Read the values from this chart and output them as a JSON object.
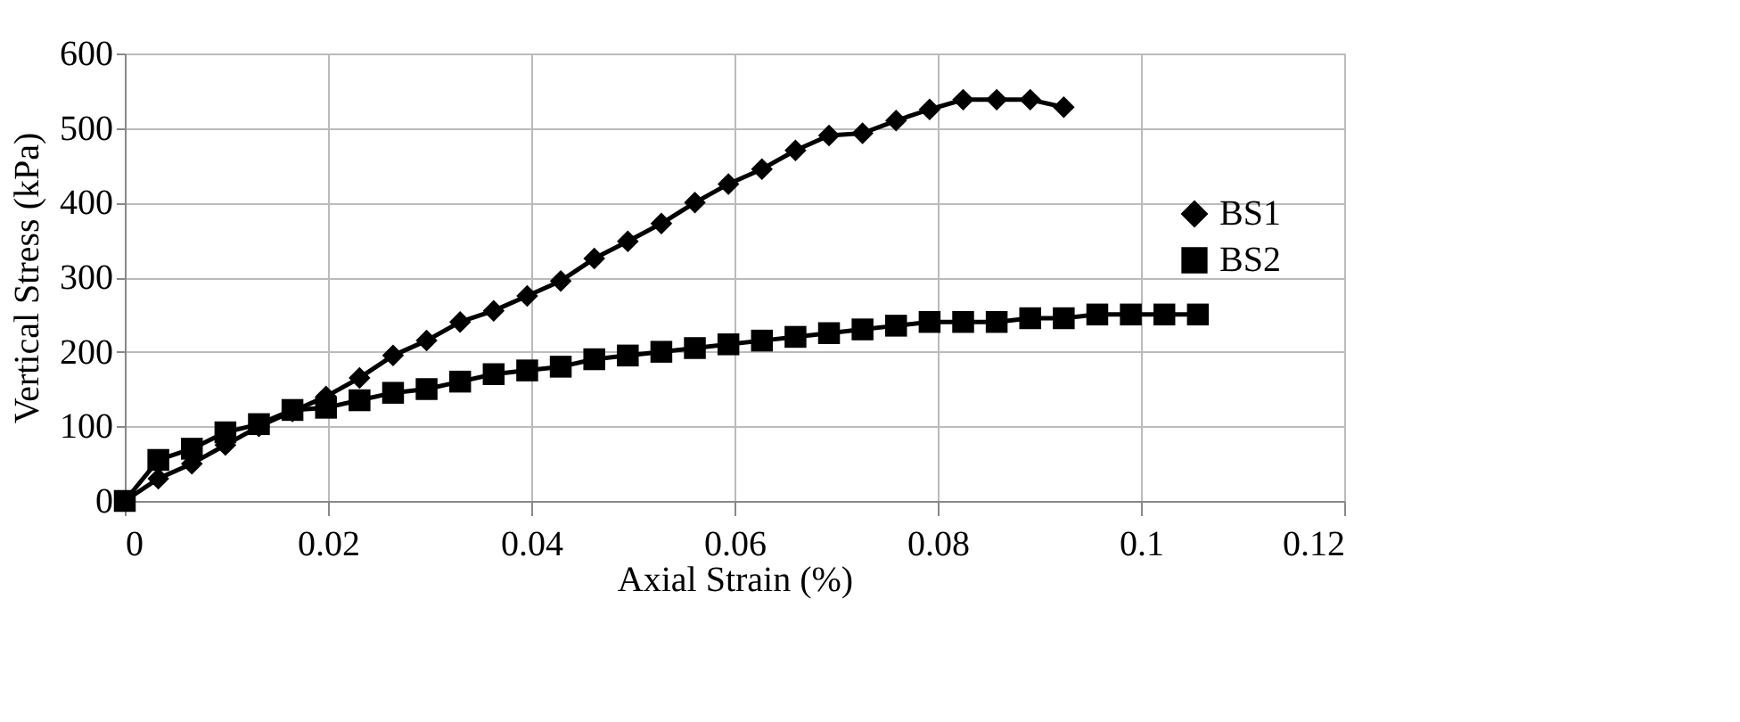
{
  "chart_data": {
    "type": "line",
    "xlabel": "Axial Strain (%)",
    "ylabel": "Vertical Stress (kPa)",
    "xlim": [
      0,
      0.12
    ],
    "xticks": [
      0,
      0.02,
      0.04,
      0.06,
      0.08,
      0.1,
      0.12
    ],
    "ylim": [
      0,
      600
    ],
    "yticks": [
      0,
      100,
      200,
      300,
      400,
      500,
      600
    ],
    "grid": true,
    "legend": "right",
    "line_style": "solid",
    "series": [
      {
        "name": "BS1",
        "color": "#000000",
        "marker": "diamond",
        "x": [
          0,
          0.0033,
          0.0066,
          0.0099,
          0.0132,
          0.0165,
          0.0198,
          0.0231,
          0.0264,
          0.0297,
          0.033,
          0.0363,
          0.0396,
          0.0429,
          0.0462,
          0.0495,
          0.0528,
          0.0561,
          0.0594,
          0.0627,
          0.066,
          0.0693,
          0.0726,
          0.0759,
          0.0792,
          0.0825,
          0.0858,
          0.0891,
          0.0924
        ],
        "values": [
          0,
          30,
          50,
          75,
          100,
          120,
          140,
          165,
          195,
          215,
          240,
          255,
          275,
          295,
          325,
          348,
          372,
          400,
          425,
          445,
          470,
          490,
          493,
          510,
          525,
          538,
          538,
          538,
          528
        ]
      },
      {
        "name": "BS2",
        "color": "#000000",
        "marker": "square",
        "x": [
          0,
          0.0033,
          0.0066,
          0.0099,
          0.0132,
          0.0165,
          0.0198,
          0.0231,
          0.0264,
          0.0297,
          0.033,
          0.0363,
          0.0396,
          0.0429,
          0.0462,
          0.0495,
          0.0528,
          0.0561,
          0.0594,
          0.0627,
          0.066,
          0.0693,
          0.0726,
          0.0759,
          0.0792,
          0.0825,
          0.0858,
          0.0891,
          0.0924,
          0.0957,
          0.099,
          0.1023,
          0.1056
        ],
        "values": [
          0,
          55,
          70,
          92,
          103,
          122,
          125,
          135,
          145,
          150,
          160,
          170,
          175,
          180,
          190,
          195,
          200,
          205,
          210,
          215,
          220,
          225,
          230,
          235,
          240,
          240,
          240,
          245,
          245,
          250,
          250,
          250,
          250
        ]
      }
    ]
  }
}
